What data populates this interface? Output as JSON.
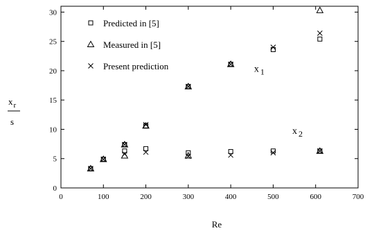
{
  "chart_data": {
    "type": "scatter",
    "title": "",
    "xlabel": "Re",
    "ylabel": {
      "top": "x",
      "top_sub": "r",
      "bottom": "s"
    },
    "xlim": [
      0,
      700
    ],
    "ylim": [
      0,
      31
    ],
    "xticks": [
      0,
      100,
      200,
      300,
      400,
      500,
      600,
      700
    ],
    "yticks": [
      0,
      5,
      10,
      15,
      20,
      25,
      30
    ],
    "grid": false,
    "legend_position": "top-left",
    "series": [
      {
        "name": "Predicted in [5]",
        "marker": "square",
        "points": [
          [
            70,
            3.3
          ],
          [
            100,
            4.9
          ],
          [
            150,
            7.4
          ],
          [
            200,
            10.6
          ],
          [
            300,
            17.3
          ],
          [
            400,
            21.1
          ],
          [
            500,
            23.6
          ],
          [
            610,
            25.4
          ],
          [
            150,
            6.3
          ],
          [
            200,
            6.7
          ],
          [
            300,
            6.0
          ],
          [
            400,
            6.2
          ],
          [
            500,
            6.3
          ],
          [
            610,
            6.3
          ]
        ]
      },
      {
        "name": "Measured in [5]",
        "marker": "triangle",
        "points": [
          [
            70,
            3.3
          ],
          [
            100,
            4.9
          ],
          [
            150,
            7.4
          ],
          [
            200,
            10.6
          ],
          [
            300,
            17.3
          ],
          [
            400,
            21.1
          ],
          [
            610,
            30.3
          ],
          [
            150,
            5.5
          ],
          [
            300,
            5.5
          ],
          [
            610,
            6.3
          ]
        ]
      },
      {
        "name": "Present prediction",
        "marker": "cross",
        "points": [
          [
            70,
            3.3
          ],
          [
            100,
            4.9
          ],
          [
            150,
            7.4
          ],
          [
            200,
            10.8
          ],
          [
            300,
            17.3
          ],
          [
            400,
            21.1
          ],
          [
            500,
            24.0
          ],
          [
            610,
            26.4
          ],
          [
            150,
            5.8
          ],
          [
            200,
            6.1
          ],
          [
            300,
            5.4
          ],
          [
            400,
            5.6
          ],
          [
            500,
            6.0
          ],
          [
            610,
            6.3
          ]
        ]
      }
    ],
    "annotations": [
      {
        "text": "x",
        "sub": "1",
        "x": 455,
        "y": 19.8
      },
      {
        "text": "x",
        "sub": "2",
        "x": 545,
        "y": 9.2
      }
    ]
  }
}
